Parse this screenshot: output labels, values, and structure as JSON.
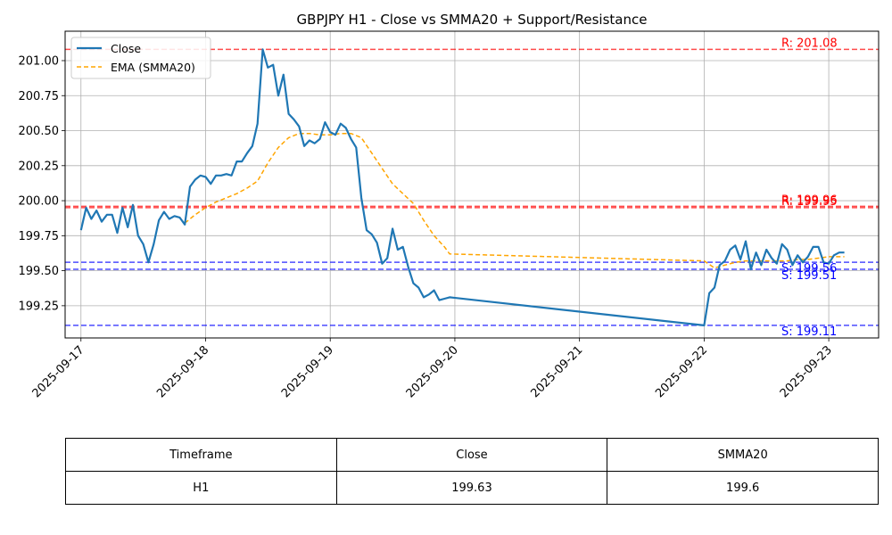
{
  "chart_data": {
    "type": "line",
    "title": "GBPJPY H1 - Close vs SMMA20 + Support/Resistance",
    "xlabel": "",
    "ylabel": "",
    "x_ticks": [
      "2025-09-17",
      "2025-09-18",
      "2025-09-19",
      "2025-09-20",
      "2025-09-21",
      "2025-09-22",
      "2025-09-23"
    ],
    "y_ticks": [
      "199.25",
      "199.50",
      "199.75",
      "200.00",
      "200.25",
      "200.50",
      "200.75",
      "201.00"
    ],
    "xlim": [
      "2025-09-16T20:57",
      "2025-09-23T09:36"
    ],
    "ylim": [
      199.02,
      201.21
    ],
    "grid": true,
    "legend_position": "top-left",
    "series": [
      {
        "name": "Close",
        "color": "#1f77b4",
        "style": "solid",
        "x": [
          "2025-09-17T00:00",
          "2025-09-17T01:00",
          "2025-09-17T02:00",
          "2025-09-17T03:00",
          "2025-09-17T04:00",
          "2025-09-17T05:00",
          "2025-09-17T06:00",
          "2025-09-17T07:00",
          "2025-09-17T08:00",
          "2025-09-17T09:00",
          "2025-09-17T10:00",
          "2025-09-17T11:00",
          "2025-09-17T12:00",
          "2025-09-17T13:00",
          "2025-09-17T14:00",
          "2025-09-17T15:00",
          "2025-09-17T16:00",
          "2025-09-17T17:00",
          "2025-09-17T18:00",
          "2025-09-17T19:00",
          "2025-09-17T20:00",
          "2025-09-17T21:00",
          "2025-09-17T22:00",
          "2025-09-17T23:00",
          "2025-09-18T00:00",
          "2025-09-18T01:00",
          "2025-09-18T02:00",
          "2025-09-18T03:00",
          "2025-09-18T04:00",
          "2025-09-18T05:00",
          "2025-09-18T06:00",
          "2025-09-18T07:00",
          "2025-09-18T08:00",
          "2025-09-18T09:00",
          "2025-09-18T10:00",
          "2025-09-18T11:00",
          "2025-09-18T12:00",
          "2025-09-18T13:00",
          "2025-09-18T14:00",
          "2025-09-18T15:00",
          "2025-09-18T16:00",
          "2025-09-18T17:00",
          "2025-09-18T18:00",
          "2025-09-18T19:00",
          "2025-09-18T20:00",
          "2025-09-18T21:00",
          "2025-09-18T22:00",
          "2025-09-18T23:00",
          "2025-09-19T00:00",
          "2025-09-19T01:00",
          "2025-09-19T02:00",
          "2025-09-19T03:00",
          "2025-09-19T04:00",
          "2025-09-19T05:00",
          "2025-09-19T06:00",
          "2025-09-19T07:00",
          "2025-09-19T08:00",
          "2025-09-19T09:00",
          "2025-09-19T10:00",
          "2025-09-19T11:00",
          "2025-09-19T12:00",
          "2025-09-19T13:00",
          "2025-09-19T14:00",
          "2025-09-19T15:00",
          "2025-09-19T16:00",
          "2025-09-19T17:00",
          "2025-09-19T18:00",
          "2025-09-19T19:00",
          "2025-09-19T20:00",
          "2025-09-19T21:00",
          "2025-09-19T22:00",
          "2025-09-19T23:00",
          "2025-09-22T00:00",
          "2025-09-22T01:00",
          "2025-09-22T02:00",
          "2025-09-22T03:00",
          "2025-09-22T04:00",
          "2025-09-22T05:00",
          "2025-09-22T06:00",
          "2025-09-22T07:00",
          "2025-09-22T08:00",
          "2025-09-22T09:00",
          "2025-09-22T10:00",
          "2025-09-22T11:00",
          "2025-09-22T12:00",
          "2025-09-22T13:00",
          "2025-09-22T14:00",
          "2025-09-22T15:00",
          "2025-09-22T16:00",
          "2025-09-22T17:00",
          "2025-09-22T18:00",
          "2025-09-22T19:00",
          "2025-09-22T20:00",
          "2025-09-22T21:00",
          "2025-09-22T22:00",
          "2025-09-22T23:00",
          "2025-09-23T00:00",
          "2025-09-23T01:00",
          "2025-09-23T02:00",
          "2025-09-23T03:00"
        ],
        "y": [
          199.79,
          199.95,
          199.87,
          199.93,
          199.85,
          199.9,
          199.9,
          199.77,
          199.95,
          199.81,
          199.97,
          199.75,
          199.69,
          199.56,
          199.69,
          199.86,
          199.92,
          199.87,
          199.89,
          199.88,
          199.83,
          200.1,
          200.15,
          200.18,
          200.17,
          200.12,
          200.18,
          200.18,
          200.19,
          200.18,
          200.28,
          200.28,
          200.34,
          200.39,
          200.55,
          201.08,
          200.95,
          200.97,
          200.75,
          200.9,
          200.62,
          200.58,
          200.53,
          200.39,
          200.43,
          200.41,
          200.44,
          200.56,
          200.49,
          200.47,
          200.55,
          200.52,
          200.44,
          200.38,
          200.02,
          199.79,
          199.76,
          199.7,
          199.55,
          199.59,
          199.8,
          199.65,
          199.67,
          199.53,
          199.41,
          199.38,
          199.31,
          199.33,
          199.36,
          199.29,
          199.3,
          199.31,
          199.11,
          199.34,
          199.38,
          199.54,
          199.57,
          199.65,
          199.68,
          199.58,
          199.71,
          199.51,
          199.63,
          199.54,
          199.65,
          199.59,
          199.55,
          199.69,
          199.65,
          199.54,
          199.61,
          199.56,
          199.6,
          199.67,
          199.67,
          199.56,
          199.55,
          199.61,
          199.63,
          199.63
        ]
      },
      {
        "name": "EMA (SMMA20)",
        "color": "#ffa500",
        "style": "dashed",
        "x": [
          "2025-09-17T20:00",
          "2025-09-17T22:00",
          "2025-09-18T00:00",
          "2025-09-18T02:00",
          "2025-09-18T04:00",
          "2025-09-18T06:00",
          "2025-09-18T08:00",
          "2025-09-18T10:00",
          "2025-09-18T12:00",
          "2025-09-18T14:00",
          "2025-09-18T16:00",
          "2025-09-18T18:00",
          "2025-09-18T20:00",
          "2025-09-18T22:00",
          "2025-09-19T00:00",
          "2025-09-19T02:00",
          "2025-09-19T04:00",
          "2025-09-19T06:00",
          "2025-09-19T08:00",
          "2025-09-19T10:00",
          "2025-09-19T12:00",
          "2025-09-19T14:00",
          "2025-09-19T16:00",
          "2025-09-19T18:00",
          "2025-09-19T20:00",
          "2025-09-19T22:00",
          "2025-09-19T23:00",
          "2025-09-22T00:00",
          "2025-09-22T02:00",
          "2025-09-22T04:00",
          "2025-09-22T06:00",
          "2025-09-22T08:00",
          "2025-09-22T10:00",
          "2025-09-22T12:00",
          "2025-09-22T14:00",
          "2025-09-22T16:00",
          "2025-09-22T18:00",
          "2025-09-22T20:00",
          "2025-09-22T22:00",
          "2025-09-23T00:00",
          "2025-09-23T02:00",
          "2025-09-23T03:00"
        ],
        "y": [
          199.84,
          199.9,
          199.95,
          199.99,
          200.02,
          200.05,
          200.09,
          200.14,
          200.27,
          200.38,
          200.45,
          200.48,
          200.48,
          200.47,
          200.47,
          200.48,
          200.48,
          200.45,
          200.34,
          200.23,
          200.12,
          200.05,
          199.98,
          199.86,
          199.75,
          199.67,
          199.62,
          199.57,
          199.52,
          199.54,
          199.56,
          199.57,
          199.57,
          199.57,
          199.57,
          199.57,
          199.58,
          199.58,
          199.59,
          199.6,
          199.6,
          199.6
        ]
      }
    ],
    "levels": [
      {
        "kind": "resistance",
        "label": "R: 201.08",
        "value": 201.08,
        "color": "#ff0000"
      },
      {
        "kind": "resistance",
        "label": "R: 199.96",
        "value": 199.96,
        "color": "#ff0000"
      },
      {
        "kind": "resistance",
        "label": "R: 199.95",
        "value": 199.95,
        "color": "#ff0000"
      },
      {
        "kind": "support",
        "label": "S: 199.56",
        "value": 199.56,
        "color": "#0000ff"
      },
      {
        "kind": "support",
        "label": "S: 199.51",
        "value": 199.51,
        "color": "#0000ff"
      },
      {
        "kind": "support",
        "label": "S: 199.11",
        "value": 199.11,
        "color": "#0000ff"
      }
    ]
  },
  "table": {
    "headers": [
      "Timeframe",
      "Close",
      "SMMA20"
    ],
    "rows": [
      [
        "H1",
        "199.63",
        "199.6"
      ]
    ]
  }
}
